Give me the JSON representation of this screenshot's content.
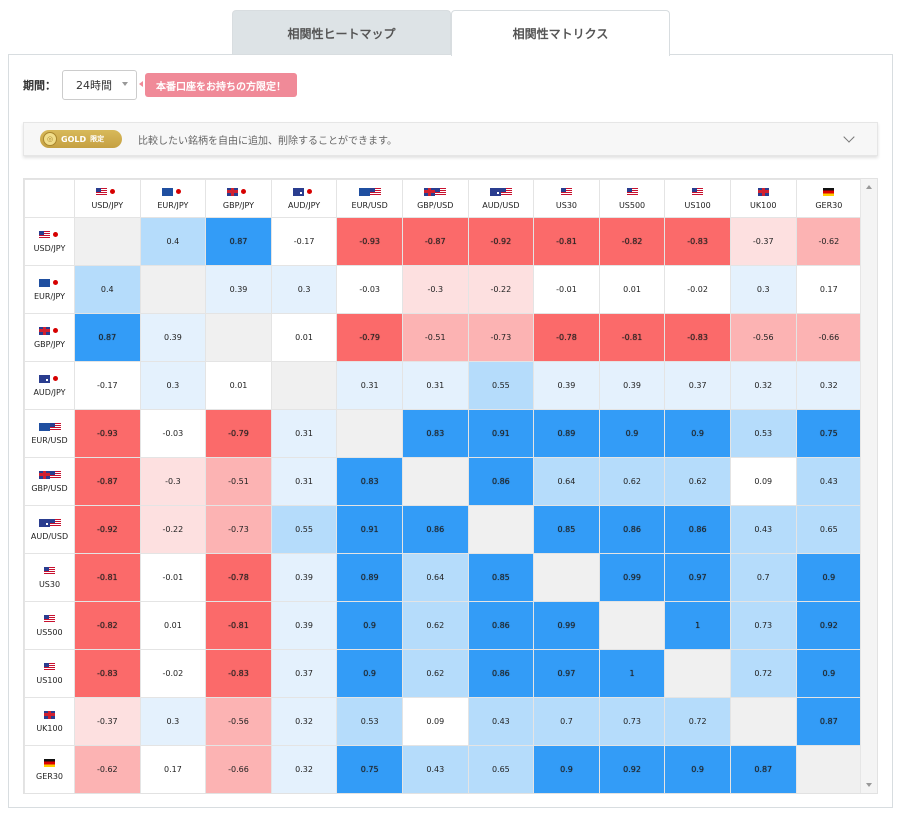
{
  "tabs": [
    {
      "label": "相関性ヒートマップ",
      "active": false
    },
    {
      "label": "相関性マトリクス",
      "active": true
    }
  ],
  "period": {
    "label": "期間：",
    "selected": "24時間",
    "badge": "本番口座をお持ちの方限定！"
  },
  "gold_notice": {
    "badge_label": "GOLD",
    "badge_sub": "限定",
    "text": "比較したい銘柄を自由に追加、削除することができます。"
  },
  "symbols": [
    "USD/JPY",
    "EUR/JPY",
    "GBP/JPY",
    "AUD/JPY",
    "EUR/USD",
    "GBP/USD",
    "AUD/USD",
    "US30",
    "US500",
    "US100",
    "UK100",
    "GER30"
  ],
  "flags": [
    "us-jp",
    "eu-jp",
    "gb-jp",
    "au-jp",
    "eu-us",
    "gb-us",
    "au-us",
    "us",
    "us",
    "us",
    "gb",
    "de"
  ],
  "matrix": [
    [
      null,
      0.4,
      0.87,
      -0.17,
      -0.93,
      -0.87,
      -0.92,
      -0.81,
      -0.82,
      -0.83,
      -0.37,
      -0.62
    ],
    [
      0.4,
      null,
      0.39,
      0.3,
      -0.03,
      -0.3,
      -0.22,
      -0.01,
      0.01,
      -0.02,
      0.3,
      0.17
    ],
    [
      0.87,
      0.39,
      null,
      0.01,
      -0.79,
      -0.51,
      -0.73,
      -0.78,
      -0.81,
      -0.83,
      -0.56,
      -0.66
    ],
    [
      -0.17,
      0.3,
      0.01,
      null,
      0.31,
      0.31,
      0.55,
      0.39,
      0.39,
      0.37,
      0.32,
      0.32
    ],
    [
      -0.93,
      -0.03,
      -0.79,
      0.31,
      null,
      0.83,
      0.91,
      0.89,
      0.9,
      0.9,
      0.53,
      0.75
    ],
    [
      -0.87,
      -0.3,
      -0.51,
      0.31,
      0.83,
      null,
      0.86,
      0.64,
      0.62,
      0.62,
      0.09,
      0.43
    ],
    [
      -0.92,
      -0.22,
      -0.73,
      0.55,
      0.91,
      0.86,
      null,
      0.85,
      0.86,
      0.86,
      0.43,
      0.65
    ],
    [
      -0.81,
      -0.01,
      -0.78,
      0.39,
      0.89,
      0.64,
      0.85,
      null,
      0.99,
      0.97,
      0.7,
      0.9
    ],
    [
      -0.82,
      0.01,
      -0.81,
      0.39,
      0.9,
      0.62,
      0.86,
      0.99,
      null,
      1,
      0.73,
      0.92
    ],
    [
      -0.83,
      -0.02,
      -0.83,
      0.37,
      0.9,
      0.62,
      0.86,
      0.97,
      1,
      null,
      0.72,
      0.9
    ],
    [
      -0.37,
      0.3,
      -0.56,
      0.32,
      0.53,
      0.09,
      0.43,
      0.7,
      0.73,
      0.72,
      null,
      0.87
    ],
    [
      -0.62,
      0.17,
      -0.66,
      0.32,
      0.75,
      0.43,
      0.65,
      0.9,
      0.92,
      0.9,
      0.87,
      null
    ]
  ],
  "colors": {
    "blue_dark": "#339cf7",
    "blue_light": "#b5dcfb",
    "blue_pale": "#e4f1fd",
    "red_pale": "#fde0e0",
    "red_light": "#fcb3b3",
    "red_dark": "#fb6a6a",
    "badge_pink": "#f08a98",
    "gold": "#c5a042"
  }
}
